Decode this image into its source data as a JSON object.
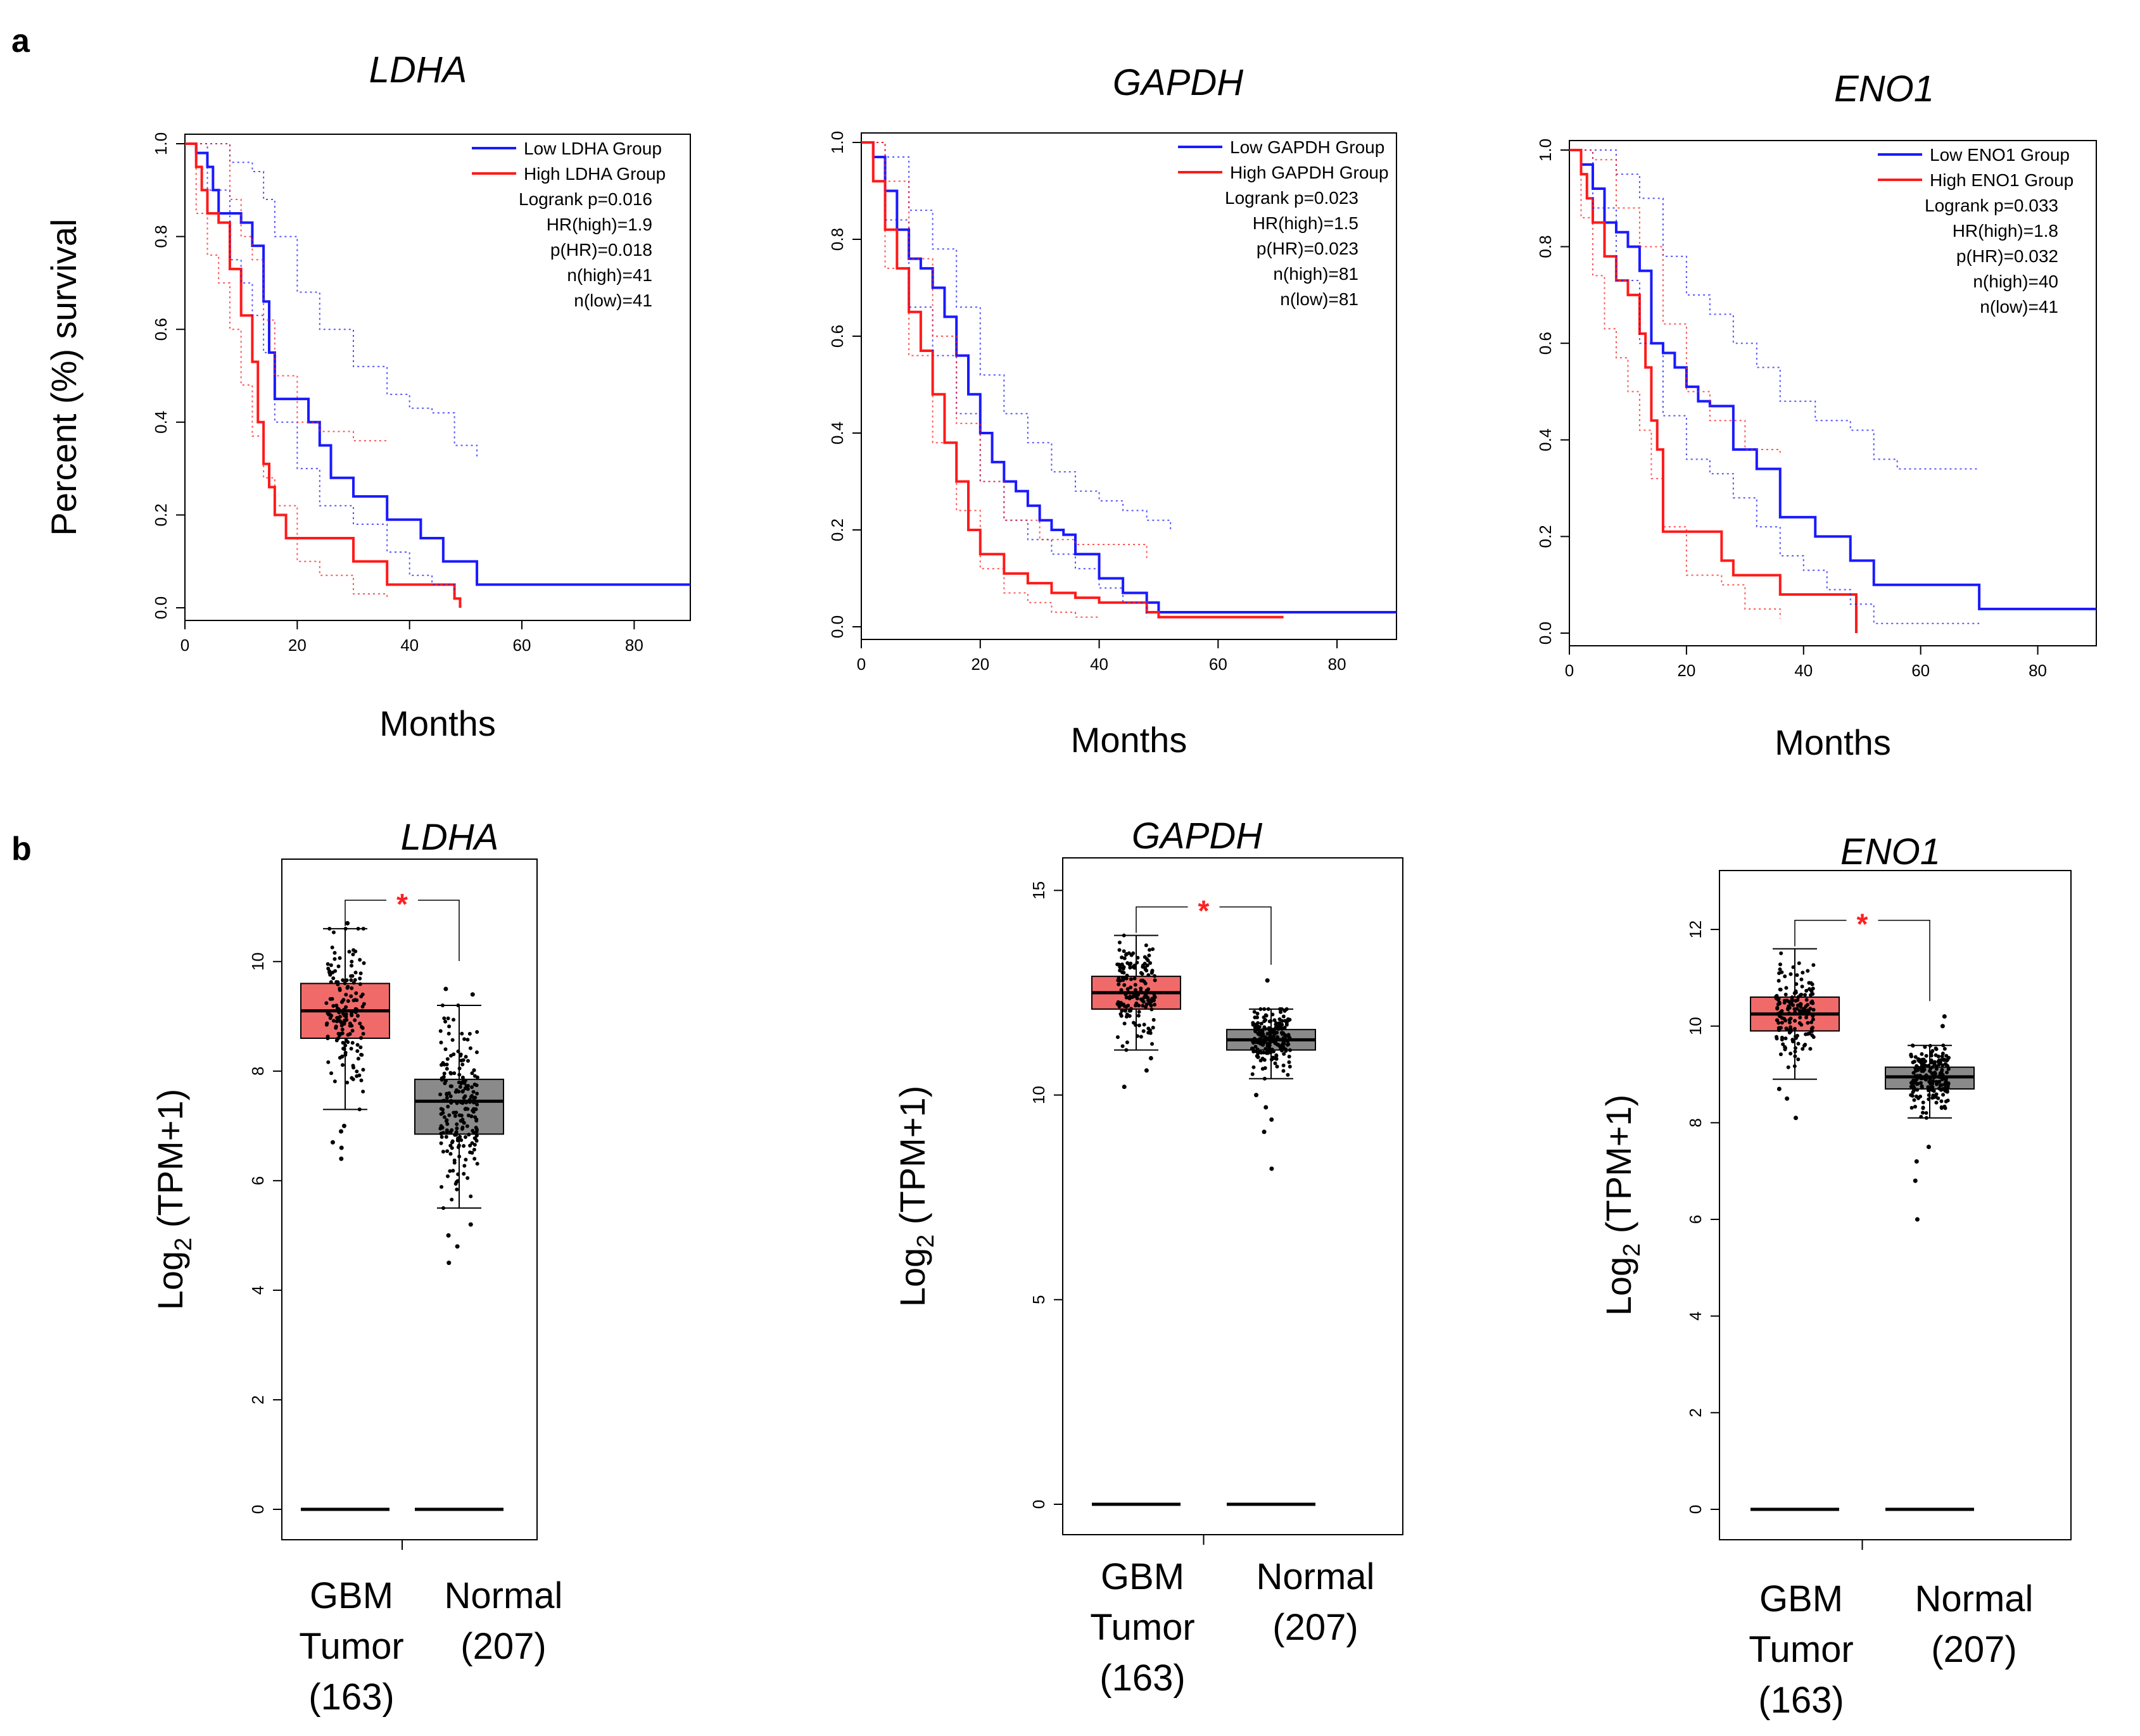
{
  "panel_letters": [
    "a",
    "b"
  ],
  "chart_data": [
    {
      "type": "line",
      "title": "LDHA",
      "xlabel": "Months",
      "ylabel": "Percent (%) survival",
      "xlim": [
        0,
        90
      ],
      "ylim": [
        0,
        1.0
      ],
      "xticks": [
        0,
        20,
        40,
        60,
        80
      ],
      "yticks": [
        0.0,
        0.2,
        0.4,
        0.6,
        0.8,
        1.0
      ],
      "colors": {
        "low": "#1a1aff",
        "high": "#ff1a1a"
      },
      "legend": [
        "Low LDHA Group",
        "High LDHA Group"
      ],
      "stats": [
        "Logrank p=0.016",
        "HR(high)=1.9",
        "p(HR)=0.018",
        "n(high)=41",
        "n(low)=41"
      ],
      "series": [
        {
          "name": "Low LDHA Group",
          "x": [
            0,
            2,
            4,
            5,
            6,
            8,
            10,
            12,
            14,
            15,
            16,
            20,
            22,
            24,
            26,
            30,
            36,
            42,
            46,
            48,
            52,
            60,
            90
          ],
          "y": [
            1.0,
            0.98,
            0.95,
            0.9,
            0.85,
            0.85,
            0.83,
            0.78,
            0.66,
            0.55,
            0.45,
            0.45,
            0.4,
            0.35,
            0.28,
            0.24,
            0.19,
            0.15,
            0.1,
            0.1,
            0.05,
            0.05,
            0.05
          ]
        },
        {
          "name": "High LDHA Group",
          "x": [
            0,
            2,
            3,
            4,
            6,
            8,
            10,
            12,
            13,
            14,
            15,
            16,
            18,
            22,
            30,
            36,
            40,
            48,
            49
          ],
          "y": [
            1.0,
            0.95,
            0.9,
            0.85,
            0.83,
            0.73,
            0.63,
            0.53,
            0.4,
            0.31,
            0.26,
            0.2,
            0.15,
            0.15,
            0.1,
            0.05,
            0.05,
            0.02,
            0.0
          ]
        },
        {
          "name": "Low upper",
          "dotted": true,
          "x": [
            0,
            4,
            8,
            12,
            14,
            16,
            20,
            24,
            30,
            36,
            40,
            44,
            48,
            52
          ],
          "y": [
            1.0,
            1.0,
            0.96,
            0.94,
            0.88,
            0.8,
            0.68,
            0.6,
            0.52,
            0.46,
            0.43,
            0.42,
            0.35,
            0.32
          ]
        },
        {
          "name": "Low lower",
          "dotted": true,
          "x": [
            0,
            4,
            8,
            10,
            12,
            14,
            16,
            20,
            24,
            30,
            36,
            40,
            44,
            48
          ],
          "y": [
            1.0,
            0.9,
            0.75,
            0.7,
            0.63,
            0.55,
            0.4,
            0.3,
            0.22,
            0.18,
            0.12,
            0.07,
            0.05,
            0.03
          ]
        },
        {
          "name": "High upper",
          "dotted": true,
          "x": [
            0,
            4,
            8,
            10,
            12,
            14,
            16,
            20,
            24,
            30,
            36
          ],
          "y": [
            1.0,
            1.0,
            0.88,
            0.8,
            0.75,
            0.62,
            0.5,
            0.4,
            0.38,
            0.36,
            0.36
          ]
        },
        {
          "name": "High lower",
          "dotted": true,
          "x": [
            0,
            2,
            4,
            6,
            8,
            10,
            12,
            14,
            16,
            20,
            24,
            30,
            36
          ],
          "y": [
            1.0,
            0.85,
            0.76,
            0.7,
            0.6,
            0.48,
            0.37,
            0.28,
            0.22,
            0.1,
            0.07,
            0.03,
            0.02
          ]
        }
      ]
    },
    {
      "type": "line",
      "title": "GAPDH",
      "xlabel": "Months",
      "ylabel": "",
      "xlim": [
        0,
        90
      ],
      "ylim": [
        0,
        1.0
      ],
      "xticks": [
        0,
        20,
        40,
        60,
        80
      ],
      "yticks": [
        0.0,
        0.2,
        0.4,
        0.6,
        0.8,
        1.0
      ],
      "colors": {
        "low": "#1a1aff",
        "high": "#ff1a1a"
      },
      "legend": [
        "Low GAPDH Group",
        "High GAPDH Group"
      ],
      "stats": [
        "Logrank p=0.023",
        "HR(high)=1.5",
        "p(HR)=0.023",
        "n(high)=81",
        "n(low)=81"
      ],
      "series": [
        {
          "name": "Low GAPDH Group",
          "x": [
            0,
            2,
            4,
            6,
            8,
            10,
            12,
            14,
            16,
            18,
            20,
            22,
            24,
            26,
            28,
            30,
            32,
            34,
            36,
            40,
            44,
            48,
            50,
            60,
            90
          ],
          "y": [
            1.0,
            0.97,
            0.9,
            0.82,
            0.76,
            0.74,
            0.7,
            0.64,
            0.56,
            0.48,
            0.4,
            0.34,
            0.3,
            0.28,
            0.25,
            0.22,
            0.2,
            0.19,
            0.15,
            0.1,
            0.07,
            0.05,
            0.03,
            0.03,
            0.03
          ]
        },
        {
          "name": "High GAPDH Group",
          "x": [
            0,
            2,
            4,
            6,
            8,
            10,
            12,
            14,
            16,
            18,
            20,
            24,
            28,
            32,
            36,
            40,
            48,
            50,
            60,
            71
          ],
          "y": [
            1.0,
            0.92,
            0.82,
            0.74,
            0.65,
            0.57,
            0.48,
            0.38,
            0.3,
            0.2,
            0.15,
            0.11,
            0.09,
            0.07,
            0.06,
            0.05,
            0.03,
            0.02,
            0.02,
            0.02
          ]
        },
        {
          "name": "Low upper",
          "dotted": true,
          "x": [
            0,
            4,
            8,
            12,
            16,
            20,
            24,
            28,
            32,
            36,
            40,
            44,
            48,
            52
          ],
          "y": [
            1.0,
            0.97,
            0.86,
            0.78,
            0.66,
            0.52,
            0.44,
            0.38,
            0.32,
            0.28,
            0.26,
            0.24,
            0.22,
            0.2
          ]
        },
        {
          "name": "Low lower",
          "dotted": true,
          "x": [
            0,
            4,
            8,
            12,
            16,
            20,
            24,
            28,
            32,
            36,
            40,
            44,
            48
          ],
          "y": [
            1.0,
            0.84,
            0.66,
            0.56,
            0.44,
            0.3,
            0.22,
            0.18,
            0.15,
            0.12,
            0.08,
            0.05,
            0.02
          ]
        },
        {
          "name": "High upper",
          "dotted": true,
          "x": [
            0,
            4,
            8,
            12,
            16,
            20,
            24,
            30,
            36,
            40,
            44,
            48
          ],
          "y": [
            1.0,
            0.92,
            0.76,
            0.6,
            0.42,
            0.3,
            0.22,
            0.18,
            0.17,
            0.17,
            0.17,
            0.14
          ]
        },
        {
          "name": "High lower",
          "dotted": true,
          "x": [
            0,
            4,
            8,
            12,
            16,
            20,
            24,
            28,
            32,
            36,
            40
          ],
          "y": [
            1.0,
            0.74,
            0.56,
            0.38,
            0.24,
            0.12,
            0.07,
            0.05,
            0.03,
            0.02,
            0.02
          ]
        }
      ]
    },
    {
      "type": "line",
      "title": "ENO1",
      "xlabel": "Months",
      "ylabel": "",
      "xlim": [
        0,
        90
      ],
      "ylim": [
        0,
        1.0
      ],
      "xticks": [
        0,
        20,
        40,
        60,
        80
      ],
      "yticks": [
        0.0,
        0.2,
        0.4,
        0.6,
        0.8,
        1.0
      ],
      "colors": {
        "low": "#1a1aff",
        "high": "#ff1a1a"
      },
      "legend": [
        "Low ENO1 Group",
        "High ENO1 Group"
      ],
      "stats": [
        "Logrank p=0.033",
        "HR(high)=1.8",
        "p(HR)=0.032",
        "n(high)=40",
        "n(low)=41"
      ],
      "series": [
        {
          "name": "Low ENO1 Group",
          "x": [
            0,
            2,
            4,
            6,
            8,
            10,
            12,
            14,
            16,
            18,
            20,
            22,
            24,
            28,
            32,
            36,
            42,
            48,
            52,
            60,
            70,
            90
          ],
          "y": [
            1.0,
            0.97,
            0.92,
            0.85,
            0.83,
            0.8,
            0.75,
            0.6,
            0.58,
            0.55,
            0.51,
            0.48,
            0.47,
            0.38,
            0.34,
            0.24,
            0.2,
            0.15,
            0.1,
            0.1,
            0.05,
            0.05
          ]
        },
        {
          "name": "High ENO1 Group",
          "x": [
            0,
            2,
            3,
            4,
            6,
            8,
            10,
            12,
            13,
            14,
            15,
            16,
            20,
            26,
            28,
            36,
            40,
            46,
            49
          ],
          "y": [
            1.0,
            0.95,
            0.9,
            0.85,
            0.78,
            0.73,
            0.7,
            0.62,
            0.55,
            0.44,
            0.38,
            0.21,
            0.21,
            0.15,
            0.12,
            0.08,
            0.08,
            0.08,
            0.0
          ]
        },
        {
          "name": "Low upper",
          "dotted": true,
          "x": [
            0,
            4,
            8,
            12,
            16,
            20,
            24,
            28,
            32,
            36,
            42,
            48,
            52,
            56,
            70
          ],
          "y": [
            1.0,
            1.0,
            0.95,
            0.9,
            0.78,
            0.7,
            0.66,
            0.6,
            0.55,
            0.48,
            0.44,
            0.42,
            0.36,
            0.34,
            0.34
          ]
        },
        {
          "name": "Low lower",
          "dotted": true,
          "x": [
            0,
            4,
            8,
            12,
            16,
            20,
            24,
            28,
            32,
            36,
            40,
            44,
            48,
            52,
            70
          ],
          "y": [
            1.0,
            0.88,
            0.73,
            0.6,
            0.45,
            0.36,
            0.33,
            0.28,
            0.22,
            0.16,
            0.13,
            0.09,
            0.06,
            0.02,
            0.02
          ]
        },
        {
          "name": "High upper",
          "dotted": true,
          "x": [
            0,
            4,
            8,
            12,
            16,
            20,
            24,
            30,
            36
          ],
          "y": [
            1.0,
            0.98,
            0.88,
            0.8,
            0.64,
            0.5,
            0.44,
            0.38,
            0.37
          ]
        },
        {
          "name": "High lower",
          "dotted": true,
          "x": [
            0,
            2,
            4,
            6,
            8,
            10,
            12,
            14,
            16,
            20,
            26,
            30,
            36
          ],
          "y": [
            1.0,
            0.86,
            0.74,
            0.63,
            0.57,
            0.5,
            0.42,
            0.32,
            0.22,
            0.12,
            0.1,
            0.05,
            0.03
          ]
        }
      ]
    },
    {
      "type": "box",
      "title": "LDHA",
      "ylabel_main": "Log",
      "ylabel_sub": "2",
      "ylabel_rest": " (TPM+1)",
      "ylim": [
        0,
        11.5
      ],
      "yticks": [
        0,
        2,
        4,
        6,
        8,
        10
      ],
      "significance": "*",
      "colors": {
        "tumor": "#f06a6a",
        "normal": "#8a8a8a",
        "star": "#ff2020"
      },
      "categories": [
        {
          "lines": [
            "GBM",
            "Tumor",
            "(163)"
          ],
          "box": {
            "q1": 8.6,
            "median": 9.1,
            "q3": 9.6,
            "whisker_low": 7.3,
            "whisker_high": 10.6
          },
          "n": 163,
          "outliers": [
            6.4,
            6.6,
            6.7,
            6.9,
            7.0,
            10.7
          ]
        },
        {
          "lines": [
            "Normal",
            "(207)"
          ],
          "box": {
            "q1": 6.85,
            "median": 7.45,
            "q3": 7.85,
            "whisker_low": 5.5,
            "whisker_high": 9.2
          },
          "n": 207,
          "outliers": [
            4.5,
            4.8,
            5.0,
            5.2,
            9.4,
            9.5
          ]
        }
      ]
    },
    {
      "type": "box",
      "title": "GAPDH",
      "ylabel_main": "Log",
      "ylabel_sub": "2",
      "ylabel_rest": " (TPM+1)",
      "ylim": [
        0,
        15.3
      ],
      "yticks": [
        0,
        5,
        10,
        15
      ],
      "significance": "*",
      "colors": {
        "tumor": "#f06a6a",
        "normal": "#8a8a8a",
        "star": "#ff2020"
      },
      "categories": [
        {
          "lines": [
            "GBM",
            "Tumor",
            "(163)"
          ],
          "box": {
            "q1": 12.1,
            "median": 12.5,
            "q3": 12.9,
            "whisker_low": 11.1,
            "whisker_high": 13.9
          },
          "n": 163,
          "outliers": [
            10.2,
            10.6,
            10.9
          ]
        },
        {
          "lines": [
            "Normal",
            "(207)"
          ],
          "box": {
            "q1": 11.1,
            "median": 11.35,
            "q3": 11.6,
            "whisker_low": 10.4,
            "whisker_high": 12.1
          },
          "n": 207,
          "outliers": [
            8.2,
            9.1,
            9.4,
            9.7,
            10.0,
            12.8
          ]
        }
      ]
    },
    {
      "type": "box",
      "title": "ENO1",
      "ylabel_main": "Log",
      "ylabel_sub": "2",
      "ylabel_rest": " (TPM+1)",
      "ylim": [
        0,
        12.8
      ],
      "yticks": [
        0,
        2,
        4,
        6,
        8,
        10,
        12
      ],
      "significance": "*",
      "colors": {
        "tumor": "#f06a6a",
        "normal": "#8a8a8a",
        "star": "#ff2020"
      },
      "categories": [
        {
          "lines": [
            "GBM",
            "Tumor",
            "(163)"
          ],
          "box": {
            "q1": 9.9,
            "median": 10.25,
            "q3": 10.6,
            "whisker_low": 8.9,
            "whisker_high": 11.6
          },
          "n": 163,
          "outliers": [
            8.1,
            8.5,
            8.7
          ]
        },
        {
          "lines": [
            "Normal",
            "(207)"
          ],
          "box": {
            "q1": 8.7,
            "median": 8.95,
            "q3": 9.15,
            "whisker_low": 8.1,
            "whisker_high": 9.6
          },
          "n": 207,
          "outliers": [
            6.0,
            6.8,
            7.2,
            7.5,
            10.0,
            10.2
          ]
        }
      ]
    }
  ]
}
